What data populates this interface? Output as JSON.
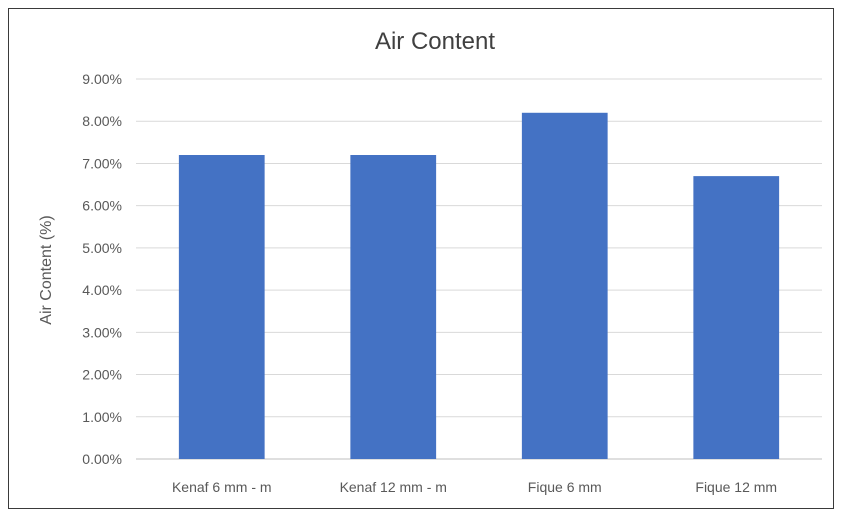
{
  "chart_data": {
    "type": "bar",
    "title": "Air Content",
    "xlabel": "",
    "ylabel": "Air Content (%)",
    "categories": [
      "Kenaf 6 mm - m",
      "Kenaf 12 mm - m",
      "Fique 6 mm",
      "Fique 12 mm"
    ],
    "values": [
      7.2,
      7.2,
      8.2,
      6.7
    ],
    "ylim": [
      0,
      9
    ],
    "yticks": [
      0,
      1,
      2,
      3,
      4,
      5,
      6,
      7,
      8,
      9
    ],
    "ytick_labels": [
      "0.00%",
      "1.00%",
      "2.00%",
      "3.00%",
      "4.00%",
      "5.00%",
      "6.00%",
      "7.00%",
      "8.00%",
      "9.00%"
    ],
    "grid": true,
    "legend": "none",
    "bar_color": "#4472c4",
    "grid_color": "#d9d9d9"
  }
}
